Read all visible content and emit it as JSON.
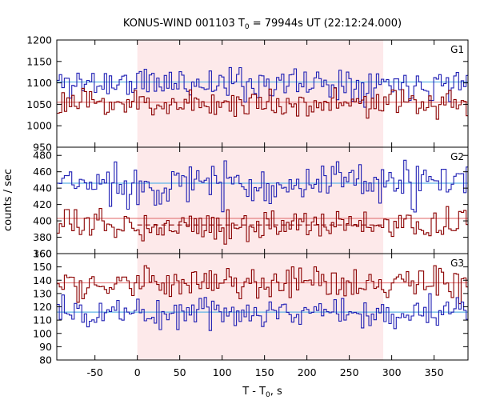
{
  "chart_data": {
    "type": "line",
    "title": "KONUS-WIND 001103 T",
    "title_subscript": "0",
    "title_rest": " = 79944s UT (22:12:24.000)",
    "xlabel": "T - T",
    "xlabel_subscript": "0",
    "xlabel_rest": ", s",
    "ylabel": "counts / sec",
    "xlim": [
      -95,
      390
    ],
    "xticks": [
      -50,
      0,
      50,
      100,
      150,
      200,
      250,
      300,
      350
    ],
    "shaded_interval": [
      0,
      290
    ],
    "step": 2.944,
    "colors": {
      "blue": "#1f1fb4",
      "red": "#8b0000",
      "blue_fit": "#5fb4e6",
      "red_fit": "#e68282",
      "shade": "#fde9ea"
    },
    "panels": [
      {
        "label": "G1",
        "ylim": [
          950,
          1200
        ],
        "yticks": [
          950,
          1000,
          1050,
          1100,
          1150,
          1200
        ],
        "series": [
          {
            "color": "blue",
            "mean": 1100,
            "noise": 20,
            "seed": 11,
            "fit": 1102
          },
          {
            "color": "red",
            "mean": 1052,
            "noise": 16,
            "seed": 23,
            "fit": 1055
          }
        ]
      },
      {
        "label": "G2",
        "ylim": [
          360,
          490
        ],
        "yticks": [
          360,
          380,
          400,
          420,
          440,
          460,
          480
        ],
        "series": [
          {
            "color": "blue",
            "mean": 445,
            "noise": 13,
            "seed": 37,
            "fit": 446
          },
          {
            "color": "red",
            "mean": 395,
            "noise": 9,
            "seed": 53,
            "fit": 403,
            "fit_dashed": 395
          }
        ]
      },
      {
        "label": "G3",
        "ylim": [
          80,
          160
        ],
        "yticks": [
          80,
          90,
          100,
          110,
          120,
          130,
          140,
          150,
          160
        ],
        "series": [
          {
            "color": "red",
            "mean": 137,
            "noise": 6,
            "seed": 71,
            "fit": 138
          },
          {
            "color": "blue",
            "mean": 116,
            "noise": 6,
            "seed": 89,
            "fit": 116
          }
        ]
      }
    ]
  }
}
